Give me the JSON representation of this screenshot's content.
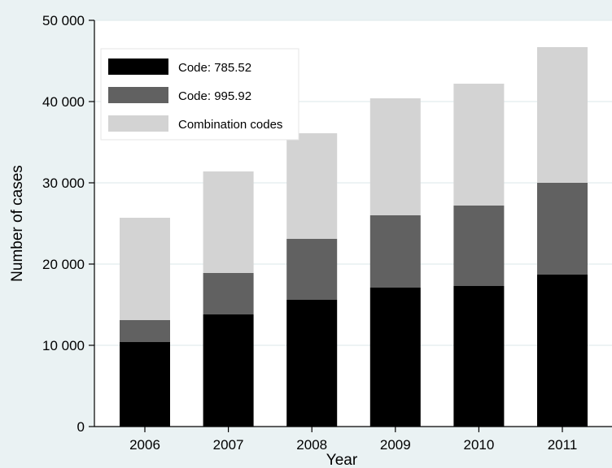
{
  "chart_data": {
    "type": "bar",
    "stacked": true,
    "title": "",
    "xlabel": "Year",
    "ylabel": "Number of cases",
    "categories": [
      "2006",
      "2007",
      "2008",
      "2009",
      "2010",
      "2011"
    ],
    "series": [
      {
        "name": "Code: 785.52",
        "color": "#000000",
        "values": [
          10400,
          13800,
          15600,
          17100,
          17300,
          18700
        ]
      },
      {
        "name": "Code: 995.92",
        "color": "#616161",
        "values": [
          2700,
          5100,
          7500,
          8900,
          9900,
          11300
        ]
      },
      {
        "name": "Combination codes",
        "color": "#d3d3d3",
        "values": [
          12600,
          12500,
          13000,
          14400,
          15000,
          16700
        ]
      }
    ],
    "ylim": [
      0,
      50000
    ],
    "yticks": [
      0,
      10000,
      20000,
      30000,
      40000,
      50000
    ],
    "ytick_labels": [
      "0",
      "10 000",
      "20 000",
      "30 000",
      "40 000",
      "50 000"
    ],
    "grid": true,
    "legend_position": "top-left",
    "background_color": "#eaf2f3",
    "gridline_color": "#ffffff"
  }
}
